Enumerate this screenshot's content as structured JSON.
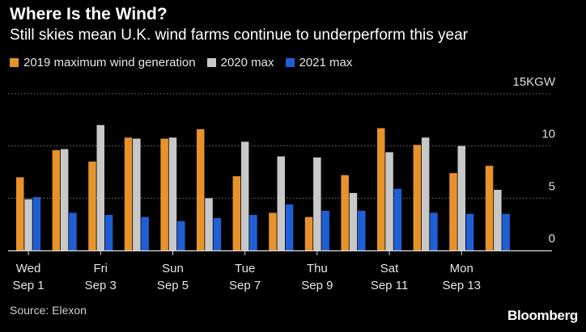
{
  "header": {
    "title": "Where Is the Wind?",
    "subtitle": "Still skies mean U.K. wind farms continue to underperform this year"
  },
  "colors": {
    "s2019": "#e8922a",
    "s2020": "#c8c8c8",
    "s2021": "#1f5fd6",
    "grid": "#777777",
    "axis": "#dddddd"
  },
  "chart_data": {
    "type": "bar",
    "title": "Where Is the Wind?",
    "subtitle": "Still skies mean U.K. wind farms continue to underperform this year",
    "unit_label": "15KGW",
    "ylim": [
      0,
      15
    ],
    "y_ticks": [
      0,
      5,
      10,
      15
    ],
    "y_tick_labels": [
      "0",
      "5",
      "10",
      "15KGW"
    ],
    "categories": [
      "Sep 1",
      "Sep 2",
      "Sep 3",
      "Sep 4",
      "Sep 5",
      "Sep 6",
      "Sep 7",
      "Sep 8",
      "Sep 9",
      "Sep 10",
      "Sep 11",
      "Sep 12",
      "Sep 13",
      "Sep 14"
    ],
    "x_tick_labels": [
      {
        "index": 0,
        "day": "Wed",
        "date": "Sep 1"
      },
      {
        "index": 2,
        "day": "Fri",
        "date": "Sep 3"
      },
      {
        "index": 4,
        "day": "Sun",
        "date": "Sep 5"
      },
      {
        "index": 6,
        "day": "Tue",
        "date": "Sep 7"
      },
      {
        "index": 8,
        "day": "Thu",
        "date": "Sep 9"
      },
      {
        "index": 10,
        "day": "Sat",
        "date": "Sep 11"
      },
      {
        "index": 12,
        "day": "Mon",
        "date": "Sep 13"
      }
    ],
    "series": [
      {
        "name": "2019 maximum wind generation",
        "key": "s2019",
        "values": [
          7.0,
          9.6,
          8.5,
          10.8,
          10.7,
          11.6,
          7.1,
          3.6,
          3.2,
          7.2,
          11.7,
          10.1,
          7.4,
          8.1
        ]
      },
      {
        "name": "2020 max",
        "key": "s2020",
        "values": [
          4.9,
          9.7,
          12.0,
          10.7,
          10.8,
          5.0,
          10.4,
          9.0,
          8.9,
          5.5,
          9.4,
          10.8,
          10.0,
          5.8
        ]
      },
      {
        "name": "2021 max",
        "key": "s2021",
        "values": [
          5.1,
          3.6,
          3.4,
          3.2,
          2.8,
          3.1,
          3.4,
          4.4,
          3.8,
          3.8,
          5.9,
          3.6,
          3.5,
          3.5
        ]
      }
    ]
  },
  "footer": {
    "source": "Source: Elexon",
    "brand": "Bloomberg"
  }
}
